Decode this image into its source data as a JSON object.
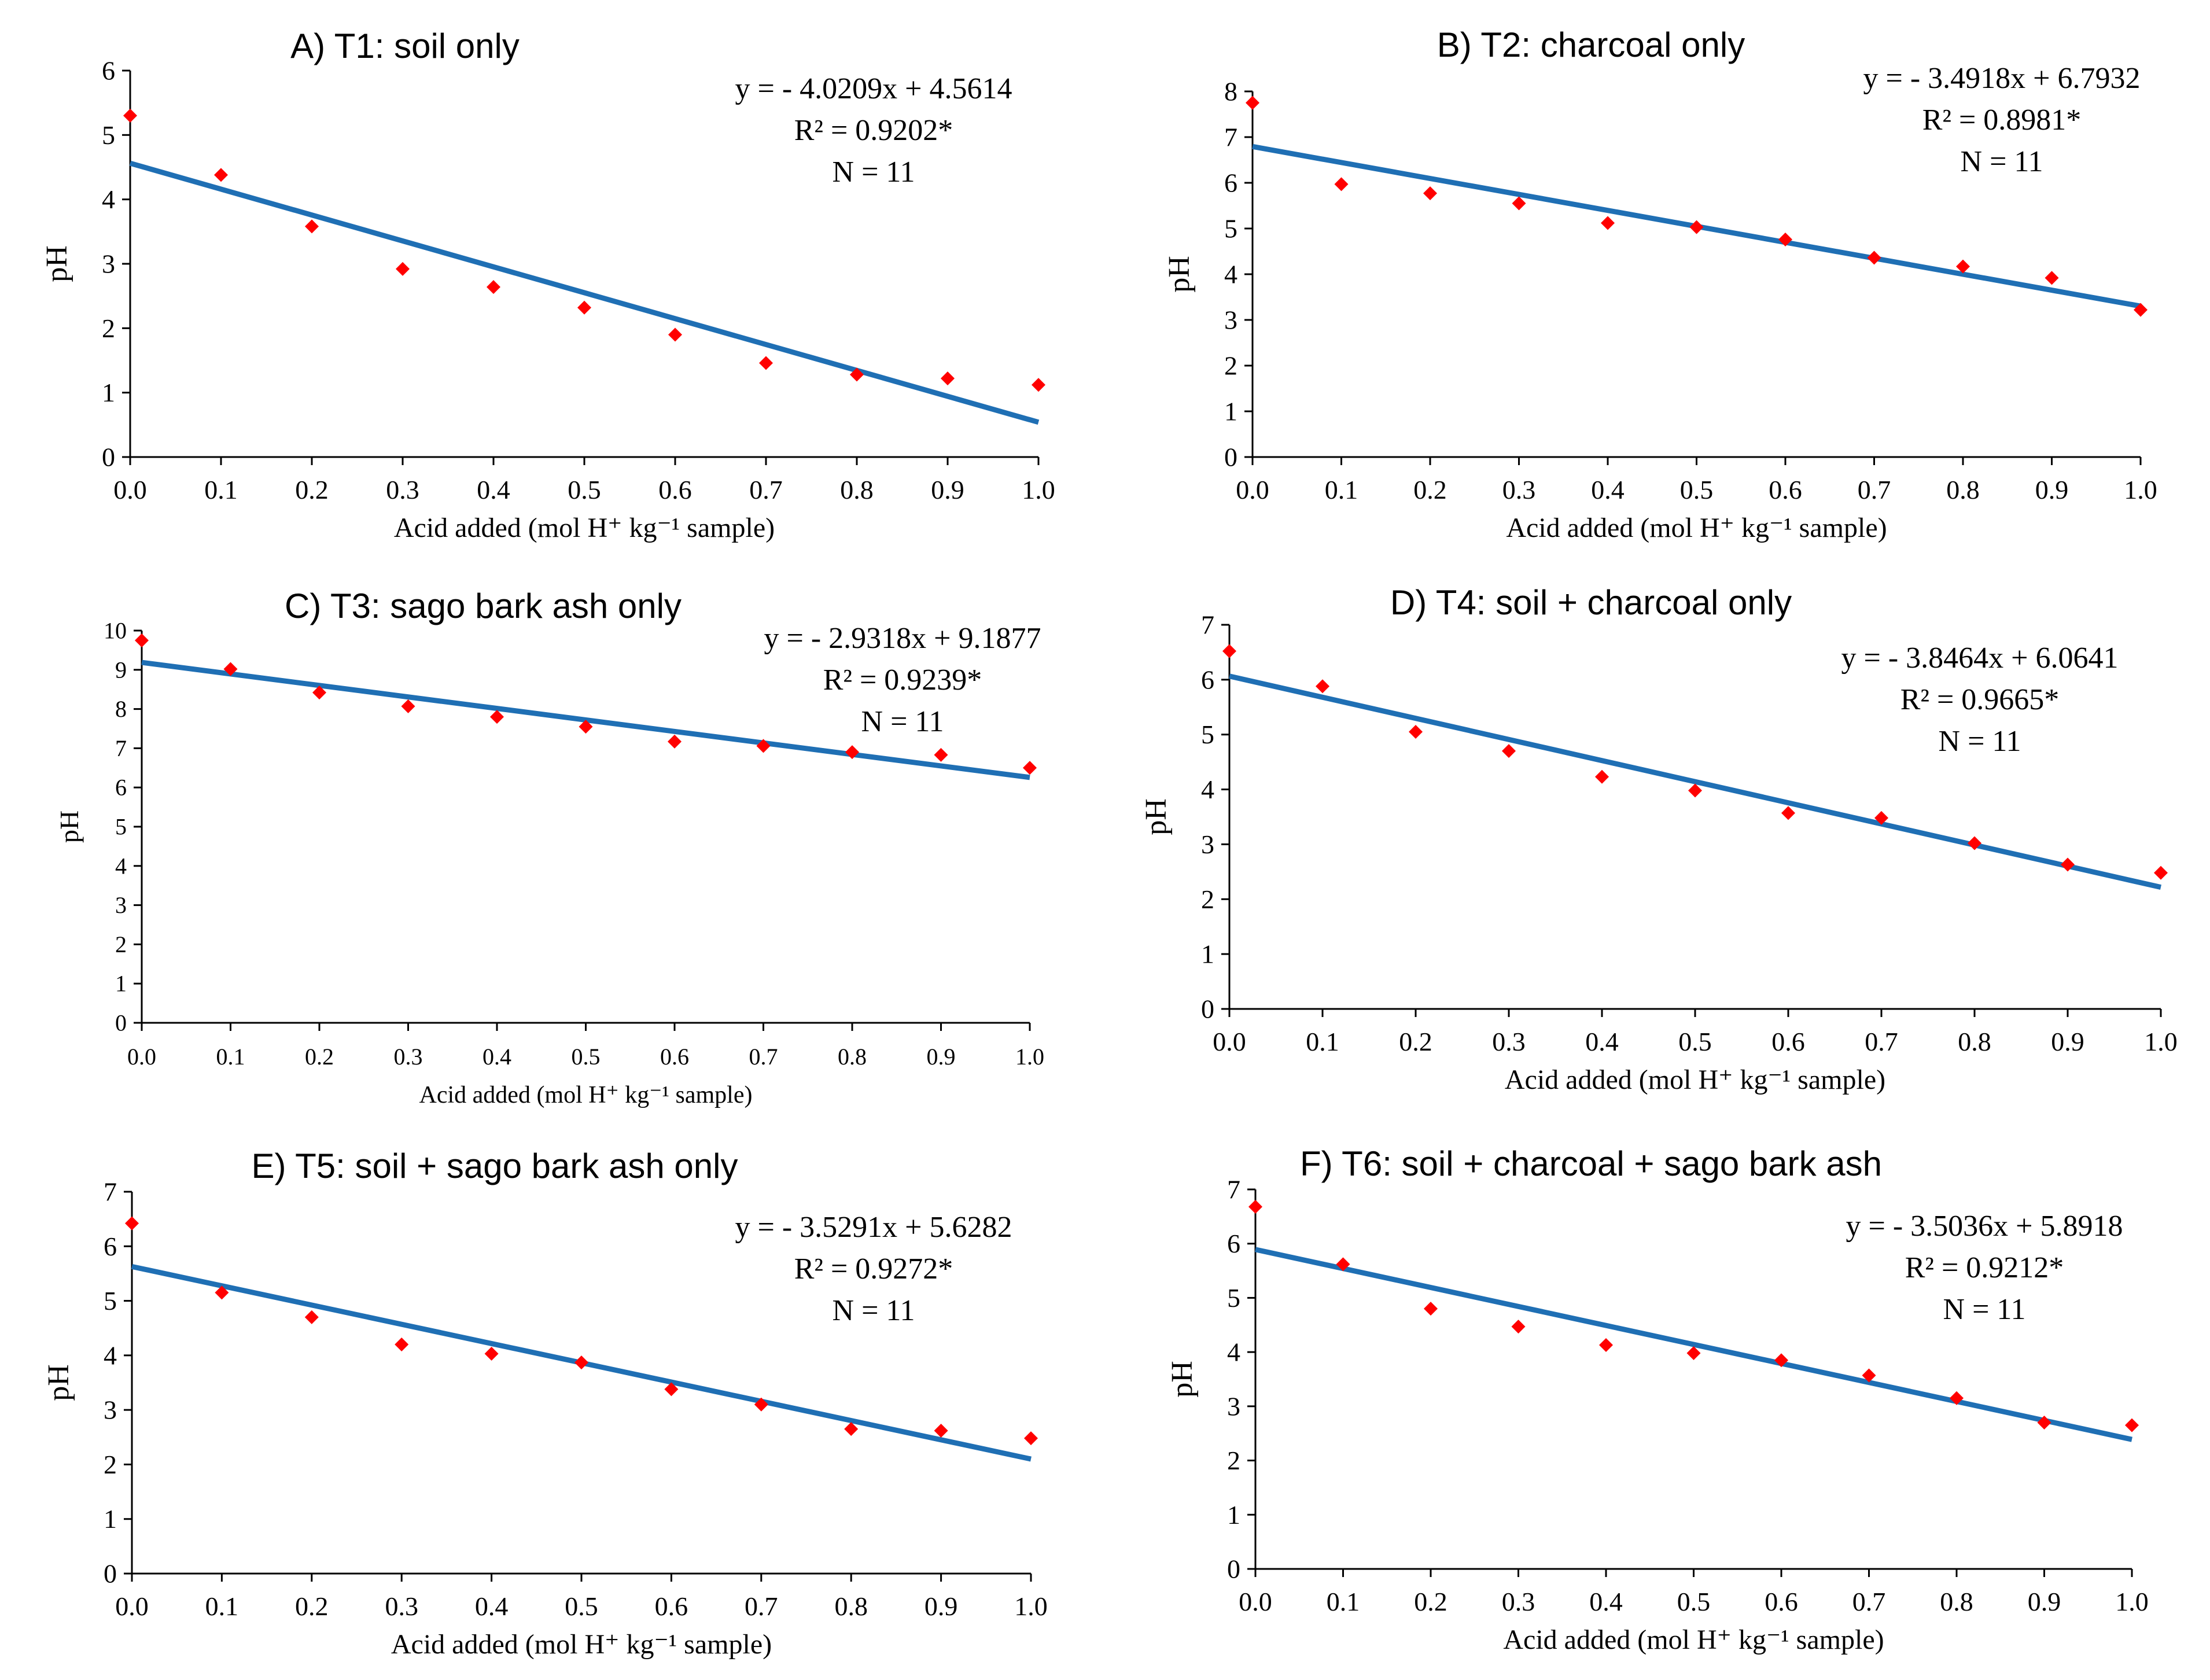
{
  "figure": {
    "colors": {
      "points": "#ff0000",
      "trend": "#1f6fb4",
      "axis": "#000000"
    }
  },
  "chart_data": [
    {
      "type": "scatter",
      "title": "A) T1: soil only",
      "xlabel": "Acid added (mol H⁺ kg⁻¹ sample)",
      "ylabel": "pH",
      "xlim": [
        0,
        1
      ],
      "ylim": [
        0,
        6
      ],
      "ystep": 1,
      "xticks": [
        "0.0",
        "0.1",
        "0.2",
        "0.3",
        "0.4",
        "0.5",
        "0.6",
        "0.7",
        "0.8",
        "0.9",
        "1.0"
      ],
      "yticks": [
        "0",
        "1",
        "2",
        "3",
        "4",
        "5",
        "6"
      ],
      "x": [
        0,
        0.1,
        0.2,
        0.3,
        0.4,
        0.5,
        0.6,
        0.7,
        0.8,
        0.9,
        1.0
      ],
      "y": [
        5.3,
        4.38,
        3.58,
        2.92,
        2.64,
        2.32,
        1.9,
        1.46,
        1.28,
        1.22,
        1.12
      ],
      "trendline": {
        "slope": -4.0209,
        "intercept": 4.5614
      },
      "equation": "y = - 4.0209x + 4.5614",
      "r2": "R² = 0.9202*",
      "n": "N = 11",
      "grid": false
    },
    {
      "type": "scatter",
      "title": "B) T2: charcoal only",
      "xlabel": "Acid added (mol H⁺ kg⁻¹ sample)",
      "ylabel": "pH",
      "xlim": [
        0,
        1
      ],
      "ylim": [
        0,
        8
      ],
      "ystep": 1,
      "xticks": [
        "0.0",
        "0.1",
        "0.2",
        "0.3",
        "0.4",
        "0.5",
        "0.6",
        "0.7",
        "0.8",
        "0.9",
        "1.0"
      ],
      "yticks": [
        "0",
        "1",
        "2",
        "3",
        "4",
        "5",
        "6",
        "7",
        "8"
      ],
      "x": [
        0,
        0.1,
        0.2,
        0.3,
        0.4,
        0.5,
        0.6,
        0.7,
        0.8,
        0.9,
        1.0
      ],
      "y": [
        7.75,
        5.97,
        5.77,
        5.55,
        5.12,
        5.03,
        4.76,
        4.36,
        4.17,
        3.92,
        3.22
      ],
      "trendline": {
        "slope": -3.4918,
        "intercept": 6.7932
      },
      "equation": "y = - 3.4918x + 6.7932",
      "r2": "R² = 0.8981*",
      "n": "N = 11",
      "grid": false
    },
    {
      "type": "scatter",
      "title": "C) T3: sago bark ash only",
      "xlabel": "Acid added (mol H⁺ kg⁻¹ sample)",
      "ylabel": "pH",
      "xlim": [
        0,
        1
      ],
      "ylim": [
        0,
        10
      ],
      "ystep": 1,
      "xticks": [
        "0.0",
        "0.1",
        "0.2",
        "0.3",
        "0.4",
        "0.5",
        "0.6",
        "0.7",
        "0.8",
        "0.9",
        "1.0"
      ],
      "yticks": [
        "0",
        "1",
        "2",
        "3",
        "4",
        "5",
        "6",
        "7",
        "8",
        "9",
        "10"
      ],
      "x": [
        0,
        0.1,
        0.2,
        0.3,
        0.4,
        0.5,
        0.6,
        0.7,
        0.8,
        0.9,
        1.0
      ],
      "y": [
        9.75,
        9.02,
        8.42,
        8.07,
        7.8,
        7.55,
        7.17,
        7.06,
        6.9,
        6.83,
        6.5
      ],
      "trendline": {
        "slope": -2.9318,
        "intercept": 9.1877
      },
      "equation": "y = - 2.9318x + 9.1877",
      "r2": "R² = 0.9239*",
      "n": "N = 11",
      "grid": false
    },
    {
      "type": "scatter",
      "title": "D) T4: soil + charcoal only",
      "xlabel": "Acid added (mol H⁺ kg⁻¹ sample)",
      "ylabel": "pH",
      "xlim": [
        0,
        1
      ],
      "ylim": [
        0,
        7
      ],
      "ystep": 1,
      "xticks": [
        "0.0",
        "0.1",
        "0.2",
        "0.3",
        "0.4",
        "0.5",
        "0.6",
        "0.7",
        "0.8",
        "0.9",
        "1.0"
      ],
      "yticks": [
        "0",
        "1",
        "2",
        "3",
        "4",
        "5",
        "6",
        "7"
      ],
      "x": [
        0,
        0.1,
        0.2,
        0.3,
        0.4,
        0.5,
        0.6,
        0.7,
        0.8,
        0.9,
        1.0
      ],
      "y": [
        6.52,
        5.88,
        5.05,
        4.7,
        4.23,
        3.98,
        3.57,
        3.48,
        3.02,
        2.63,
        2.48
      ],
      "trendline": {
        "slope": -3.8464,
        "intercept": 6.0641
      },
      "equation": "y = - 3.8464x + 6.0641",
      "r2": "R² = 0.9665*",
      "n": "N = 11",
      "grid": false
    },
    {
      "type": "scatter",
      "title": "E) T5: soil + sago bark ash only",
      "xlabel": "Acid added (mol H⁺ kg⁻¹ sample)",
      "ylabel": "pH",
      "xlim": [
        0,
        1
      ],
      "ylim": [
        0,
        7
      ],
      "ystep": 1,
      "xticks": [
        "0.0",
        "0.1",
        "0.2",
        "0.3",
        "0.4",
        "0.5",
        "0.6",
        "0.7",
        "0.8",
        "0.9",
        "1.0"
      ],
      "yticks": [
        "0",
        "1",
        "2",
        "3",
        "4",
        "5",
        "6",
        "7"
      ],
      "x": [
        0,
        0.1,
        0.2,
        0.3,
        0.4,
        0.5,
        0.6,
        0.7,
        0.8,
        0.9,
        1.0
      ],
      "y": [
        6.42,
        5.15,
        4.7,
        4.2,
        4.03,
        3.87,
        3.38,
        3.1,
        2.65,
        2.62,
        2.48
      ],
      "trendline": {
        "slope": -3.5291,
        "intercept": 5.6282
      },
      "equation": "y = - 3.5291x + 5.6282",
      "r2": "R² = 0.9272*",
      "n": "N = 11",
      "grid": false
    },
    {
      "type": "scatter",
      "title": "F) T6: soil + charcoal + sago bark ash",
      "xlabel": "Acid added (mol H⁺ kg⁻¹ sample)",
      "ylabel": "pH",
      "xlim": [
        0,
        1
      ],
      "ylim": [
        0,
        7
      ],
      "ystep": 1,
      "xticks": [
        "0.0",
        "0.1",
        "0.2",
        "0.3",
        "0.4",
        "0.5",
        "0.6",
        "0.7",
        "0.8",
        "0.9",
        "1.0"
      ],
      "yticks": [
        "0",
        "1",
        "2",
        "3",
        "4",
        "5",
        "6",
        "7"
      ],
      "x": [
        0,
        0.1,
        0.2,
        0.3,
        0.4,
        0.5,
        0.6,
        0.7,
        0.8,
        0.9,
        1.0
      ],
      "y": [
        6.68,
        5.62,
        4.8,
        4.47,
        4.13,
        3.98,
        3.85,
        3.57,
        3.15,
        2.7,
        2.65
      ],
      "trendline": {
        "slope": -3.5036,
        "intercept": 5.8918
      },
      "equation": "y = - 3.5036x + 5.8918",
      "r2": "R² = 0.9212*",
      "n": "N = 11",
      "grid": false
    }
  ]
}
